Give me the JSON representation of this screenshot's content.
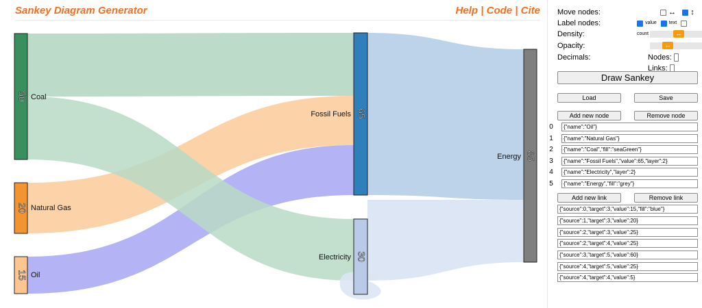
{
  "header": {
    "title": "Sankey Diagram Generator",
    "help": "Help",
    "code": "Code",
    "cite": "Cite",
    "sep": " | "
  },
  "controls": {
    "move_nodes": "Move nodes:",
    "move_h_icon": "↔",
    "move_v_icon": "↕",
    "label_nodes": "Label nodes:",
    "label_value": "value",
    "label_text": "text",
    "label_count": "count",
    "density": "Density:",
    "opacity": "Opacity:",
    "decimals": "Decimals:",
    "nodes_label": "Nodes:",
    "links_label": "Links:",
    "slider_icon": "↔"
  },
  "buttons": {
    "draw": "Draw Sankey",
    "load": "Load",
    "save": "Save",
    "add_node": "Add new node",
    "remove_node": "Remove node",
    "add_link": "Add new link",
    "remove_link": "Remove link"
  },
  "node_fields": [
    "{\"name\":\"Oil\"}",
    "{\"name\":\"Natural Gas\"}",
    "{\"name\":\"Coal\",\"fill\":\"seaGreen\"}",
    "{\"name\":\"Fossil Fuels\",\"value\":65,\"layer\":2}",
    "{\"name\":\"Electricity\",\"layer\":2}",
    "{\"name\":\"Energy\",\"fill\":\"grey\"}"
  ],
  "node_indices": [
    "0",
    "1",
    "2",
    "3",
    "4",
    "5"
  ],
  "link_fields": [
    "{\"source\":0,\"target\":3,\"value\":15,\"fill\":\"blue\"}",
    "{\"source\":1,\"target\":3,\"value\":20}",
    "{\"source\":2,\"target\":3,\"value\":25}",
    "{\"source\":2,\"target\":4,\"value\":25}",
    "{\"source\":3,\"target\":5,\"value\":60}",
    "{\"source\":4,\"target\":5,\"value\":25}",
    "{\"source\":4,\"target\":4,\"value\":5}"
  ],
  "sankey": {
    "nodes": [
      {
        "name": "Coal",
        "value": "50",
        "color": "#3a8f5e"
      },
      {
        "name": "Natural Gas",
        "value": "20",
        "color": "#f39433"
      },
      {
        "name": "Oil",
        "value": "15",
        "color": "#fdc58f"
      },
      {
        "name": "Fossil Fuels",
        "value": "65",
        "color": "#2f7fba"
      },
      {
        "name": "Electricity",
        "value": "30",
        "color": "#b9cbe9"
      },
      {
        "name": "Energy",
        "value": "85",
        "color": "#7f7f7f"
      }
    ],
    "link_colors": {
      "coal": "#b8d9c6",
      "gas": "#fcd0a4",
      "oil": "#a6a6f4",
      "fossil": "#b9d1e8",
      "elec": "#dbe5f3"
    }
  }
}
